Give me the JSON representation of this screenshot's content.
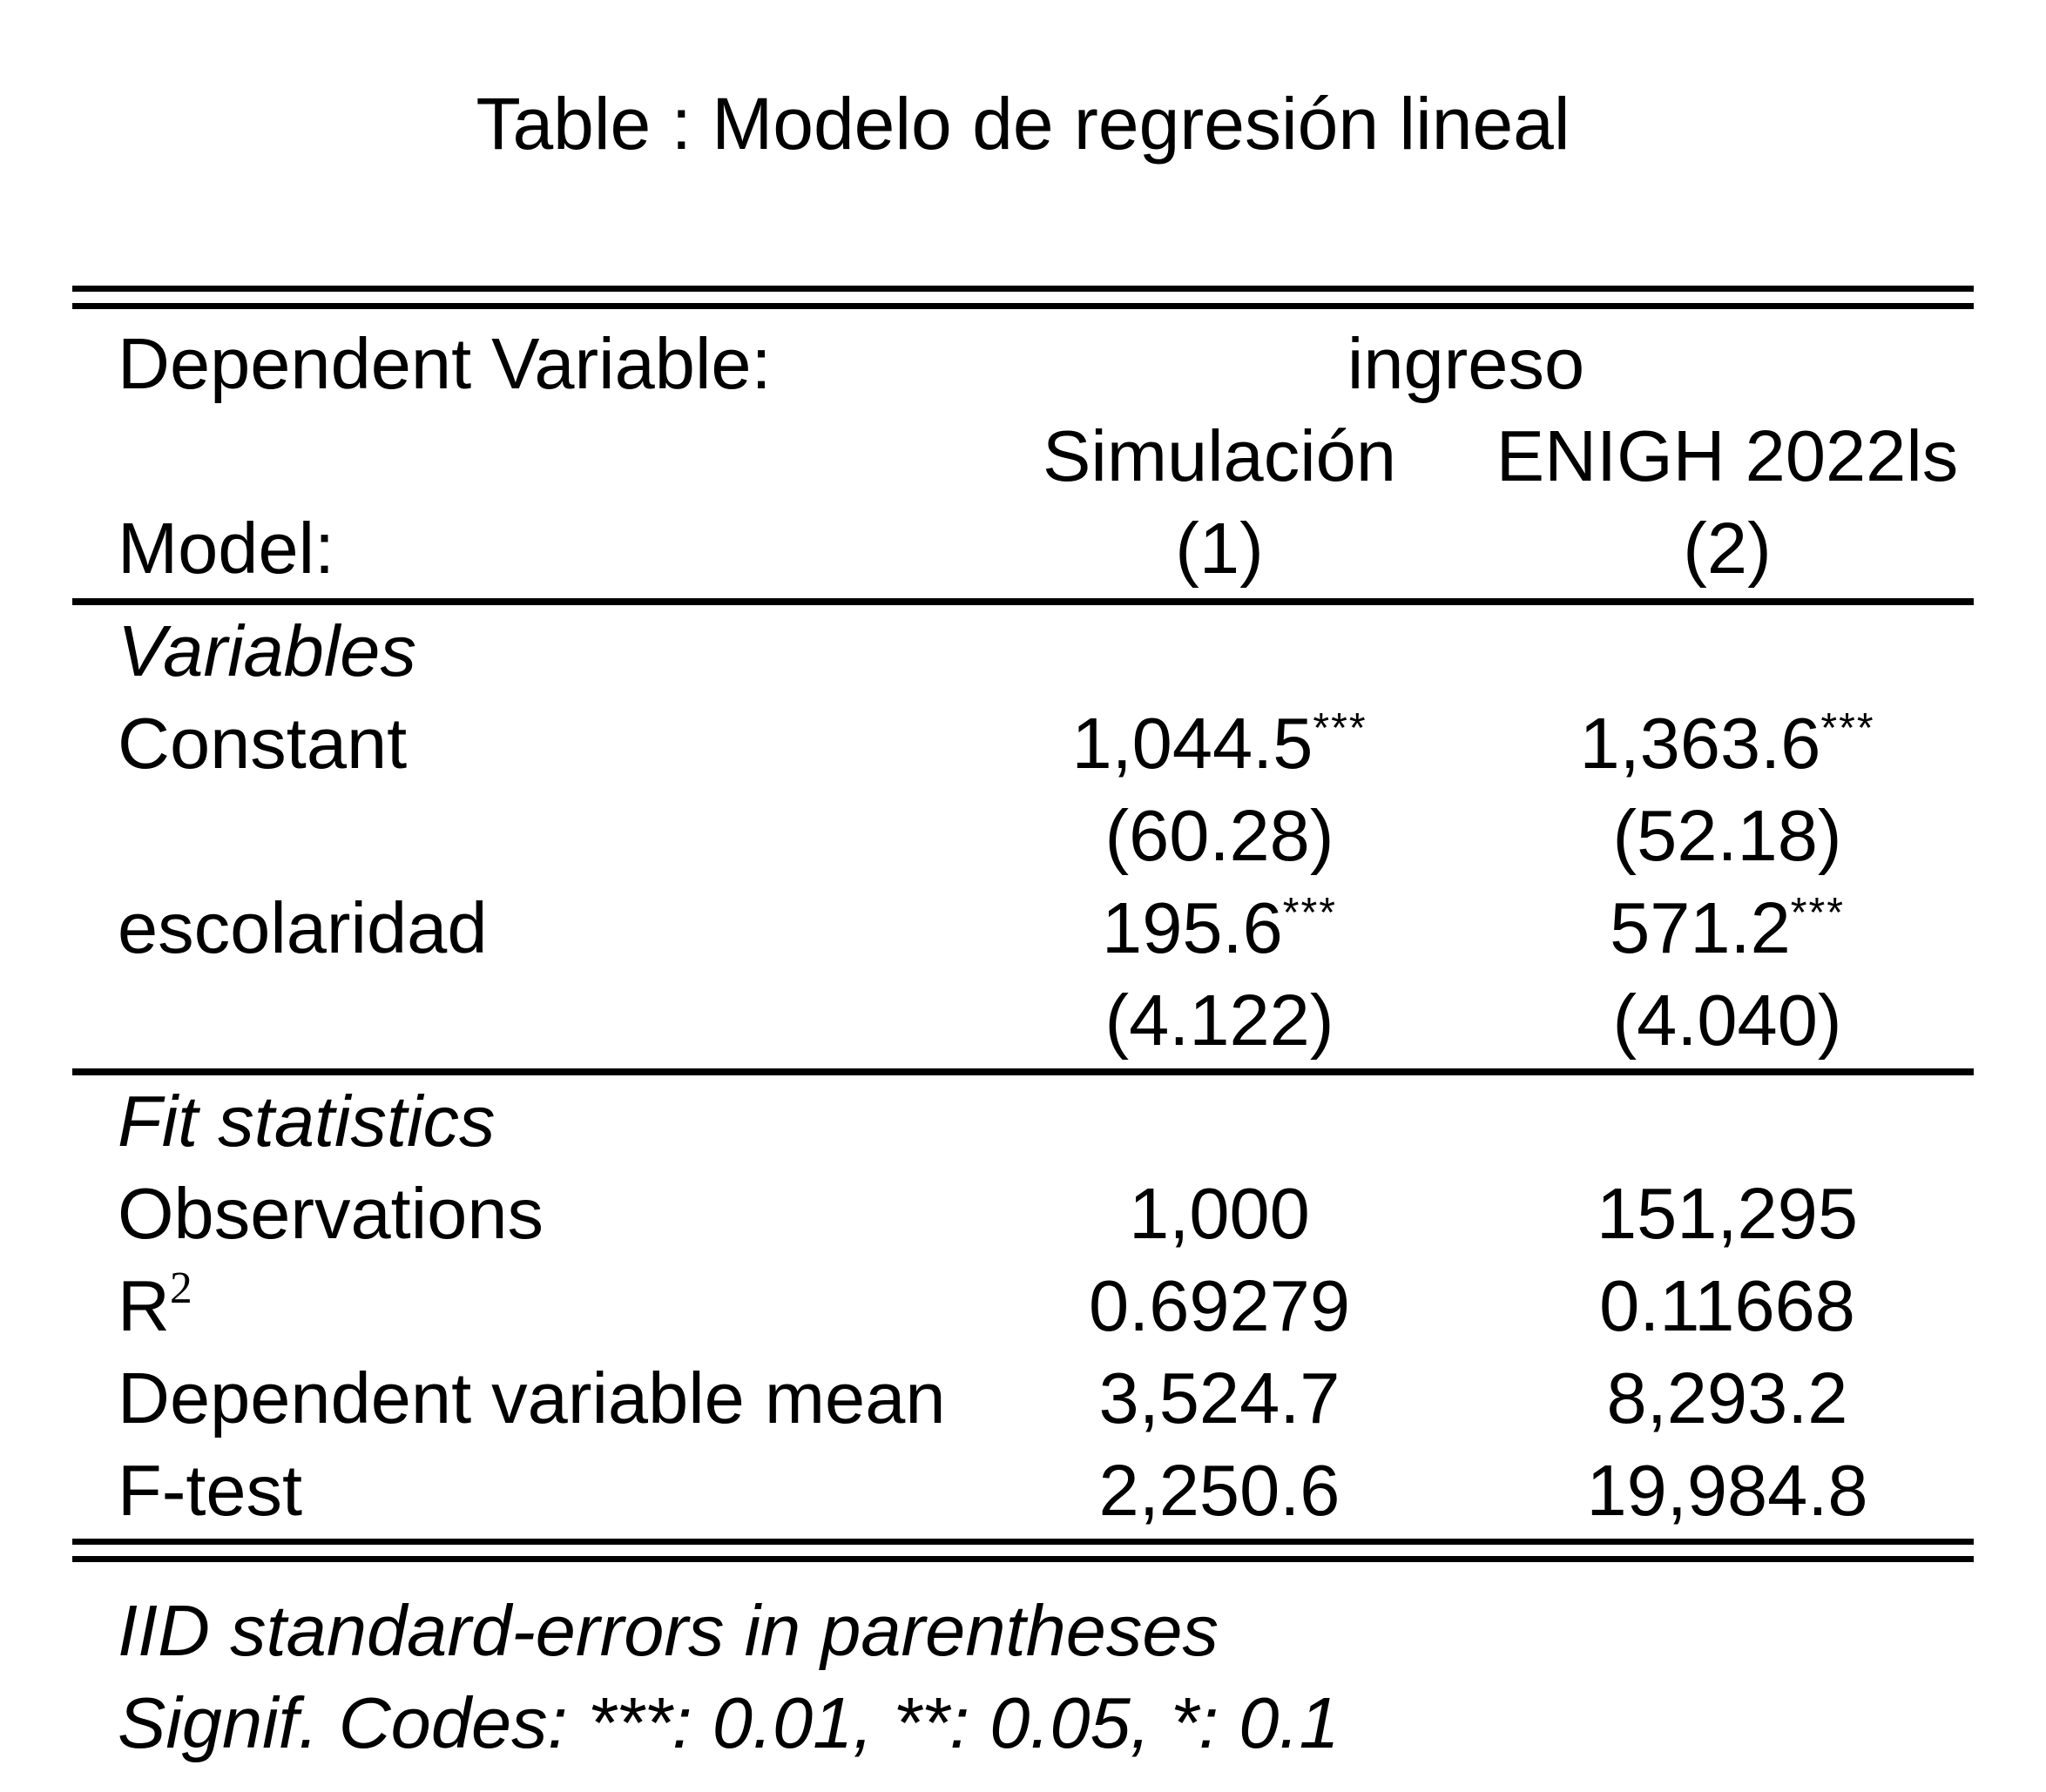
{
  "title": "Table : Modelo de regresión lineal",
  "colors": {
    "text": "#000000",
    "background": "#ffffff"
  },
  "header": {
    "dep_label": "Dependent Variable:",
    "dep_value": "ingreso",
    "model_label": "Model:",
    "model1_name": "Simulación",
    "model2_name": "ENIGH 2022ls",
    "model1_number": "(1)",
    "model2_number": "(2)"
  },
  "variables": {
    "heading": "Variables",
    "constant": {
      "label": "Constant",
      "v1": "1,044.5",
      "s1": "***",
      "v2": "1,363.6",
      "s2": "***"
    },
    "constant_se": {
      "v1": "(60.28)",
      "v2": "(52.18)"
    },
    "escolaridad": {
      "label": "escolaridad",
      "v1": "195.6",
      "s1": "***",
      "v2": "571.2",
      "s2": "***"
    },
    "escolaridad_se": {
      "v1": "(4.122)",
      "v2": "(4.040)"
    }
  },
  "fit": {
    "heading": "Fit statistics",
    "observations": {
      "label": "Observations",
      "v1": "1,000",
      "v2": "151,295"
    },
    "r2": {
      "label_base": "R",
      "label_sup": "2",
      "v1": "0.69279",
      "v2": "0.11668"
    },
    "dep_mean": {
      "label": "Dependent variable mean",
      "v1": "3,524.7",
      "v2": "8,293.2"
    },
    "f_test": {
      "label": "F-test",
      "v1": "2,250.6",
      "v2": "19,984.8"
    }
  },
  "footnotes": {
    "line1": "IID standard-errors in parentheses",
    "line2": "Signif. Codes: ***: 0.01, **: 0.05, *: 0.1"
  }
}
